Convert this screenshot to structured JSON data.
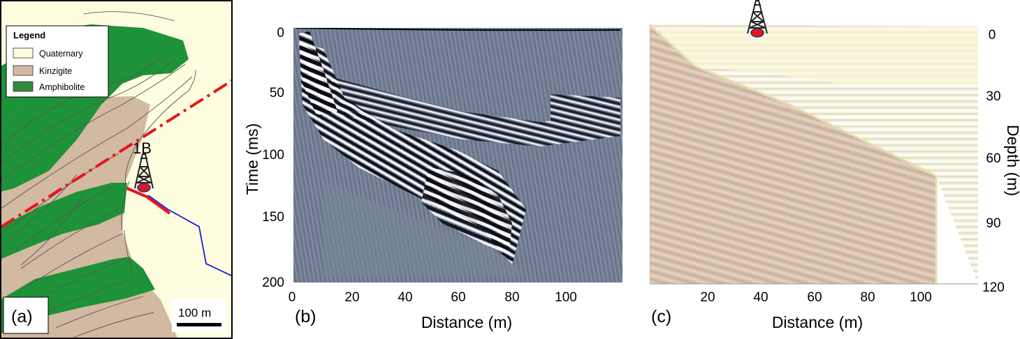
{
  "panel_a": {
    "label": "(a)",
    "legend": {
      "title": "Legend",
      "items": [
        {
          "label": "Quaternary",
          "color": "#fffde0"
        },
        {
          "label": "Kinzigite",
          "color": "#d2b9a2"
        },
        {
          "label": "Amphibolite",
          "color": "#2f8c3b"
        }
      ]
    },
    "site_label": "1B",
    "scale_bar_label": "100 m",
    "colors": {
      "background": "#fffde0",
      "kinzigite": "#d2b9a2",
      "amphibolite": "#1e9238",
      "profile_line": "#e8141b",
      "river": "#1a1adc"
    }
  },
  "panel_b": {
    "label": "(b)",
    "xlabel": "Distance (m)",
    "ylabel": "Time (ms)",
    "x_ticks": [
      "0",
      "20",
      "40",
      "60",
      "80",
      "100"
    ],
    "y_ticks": [
      "0",
      "50",
      "100",
      "150",
      "200"
    ]
  },
  "panel_c": {
    "label": "(c)",
    "xlabel": "Distance (m)",
    "ylabel": "Depth (m)",
    "x_ticks": [
      "20",
      "40",
      "60",
      "80",
      "100"
    ],
    "y_ticks": [
      "0",
      "30",
      "60",
      "90",
      "120"
    ]
  }
}
